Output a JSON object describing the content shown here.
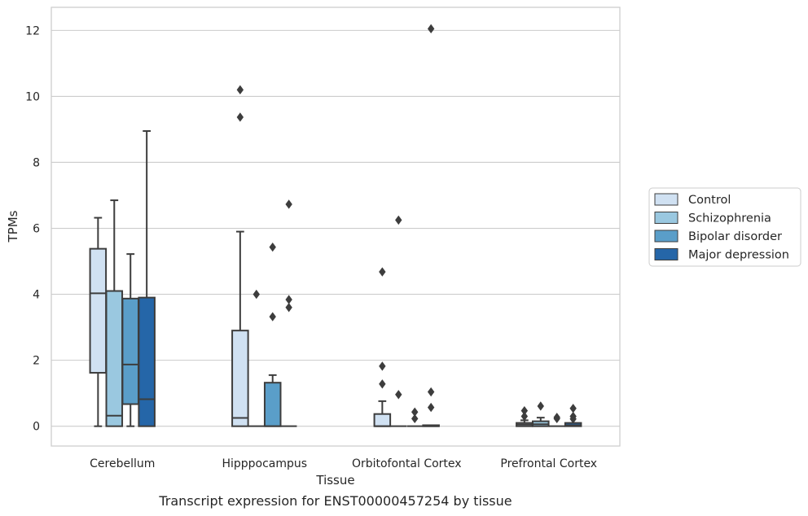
{
  "caption": "Transcript expression for ENST00000457254 by tissue",
  "chart_data": {
    "type": "boxplot",
    "title": "",
    "xlabel": "Tissue",
    "ylabel": "TPMs",
    "ylim": [
      -0.6,
      12.7
    ],
    "yticks": [
      0,
      2,
      4,
      6,
      8,
      10,
      12
    ],
    "grid": "horizontal",
    "legend_position": "right",
    "categories": [
      "Cerebellum",
      "Hipppocampus",
      "Orbitofontal Cortex",
      "Prefrontal Cortex"
    ],
    "series": [
      {
        "name": "Control",
        "color": "#d0e1f2",
        "boxes": [
          {
            "whisker_low": 0,
            "q1": 1.62,
            "median": 4.03,
            "q3": 5.38,
            "whisker_high": 6.32,
            "outliers": []
          },
          {
            "whisker_low": 0,
            "q1": 0,
            "median": 0.25,
            "q3": 2.9,
            "whisker_high": 5.9,
            "outliers": [
              10.2,
              9.37
            ]
          },
          {
            "whisker_low": 0,
            "q1": 0,
            "median": 0,
            "q3": 0.37,
            "whisker_high": 0.76,
            "outliers": [
              4.68,
              1.82,
              1.28
            ]
          },
          {
            "whisker_low": 0,
            "q1": 0,
            "median": 0.05,
            "q3": 0.1,
            "whisker_high": 0.18,
            "outliers": [
              0.47,
              0.3
            ]
          }
        ]
      },
      {
        "name": "Schizophrenia",
        "color": "#9ac8e0",
        "boxes": [
          {
            "whisker_low": 0,
            "q1": 0,
            "median": 0.32,
            "q3": 4.1,
            "whisker_high": 6.85,
            "outliers": []
          },
          {
            "whisker_low": 0,
            "q1": 0,
            "median": 0,
            "q3": 0,
            "whisker_high": 0,
            "outliers": [
              4.0
            ]
          },
          {
            "whisker_low": 0,
            "q1": 0,
            "median": 0,
            "q3": 0,
            "whisker_high": 0,
            "outliers": [
              6.25,
              0.96
            ]
          },
          {
            "whisker_low": 0,
            "q1": 0,
            "median": 0.06,
            "q3": 0.15,
            "whisker_high": 0.26,
            "outliers": [
              0.61
            ]
          }
        ]
      },
      {
        "name": "Bipolar disorder",
        "color": "#5a9ec9",
        "boxes": [
          {
            "whisker_low": 0,
            "q1": 0.67,
            "median": 1.87,
            "q3": 3.87,
            "whisker_high": 5.22,
            "outliers": []
          },
          {
            "whisker_low": 0,
            "q1": 0,
            "median": 0,
            "q3": 1.32,
            "whisker_high": 1.55,
            "outliers": [
              5.43,
              3.32
            ]
          },
          {
            "whisker_low": 0,
            "q1": 0,
            "median": 0,
            "q3": 0,
            "whisker_high": 0,
            "outliers": [
              0.43,
              0.23
            ]
          },
          {
            "whisker_low": 0,
            "q1": 0,
            "median": 0,
            "q3": 0,
            "whisker_high": 0,
            "outliers": [
              0.27,
              0.23
            ]
          }
        ]
      },
      {
        "name": "Major depression",
        "color": "#2566a8",
        "boxes": [
          {
            "whisker_low": 0,
            "q1": 0,
            "median": 0.82,
            "q3": 3.9,
            "whisker_high": 8.95,
            "outliers": []
          },
          {
            "whisker_low": 0,
            "q1": 0,
            "median": 0,
            "q3": 0,
            "whisker_high": 0,
            "outliers": [
              6.73,
              3.84,
              3.6
            ]
          },
          {
            "whisker_low": 0,
            "q1": 0,
            "median": 0,
            "q3": 0.03,
            "whisker_high": 0.03,
            "outliers": [
              12.05,
              1.04,
              0.57
            ]
          },
          {
            "whisker_low": 0,
            "q1": 0,
            "median": 0.03,
            "q3": 0.1,
            "whisker_high": 0.1,
            "outliers": [
              0.54,
              0.3,
              0.22
            ]
          }
        ]
      }
    ]
  }
}
